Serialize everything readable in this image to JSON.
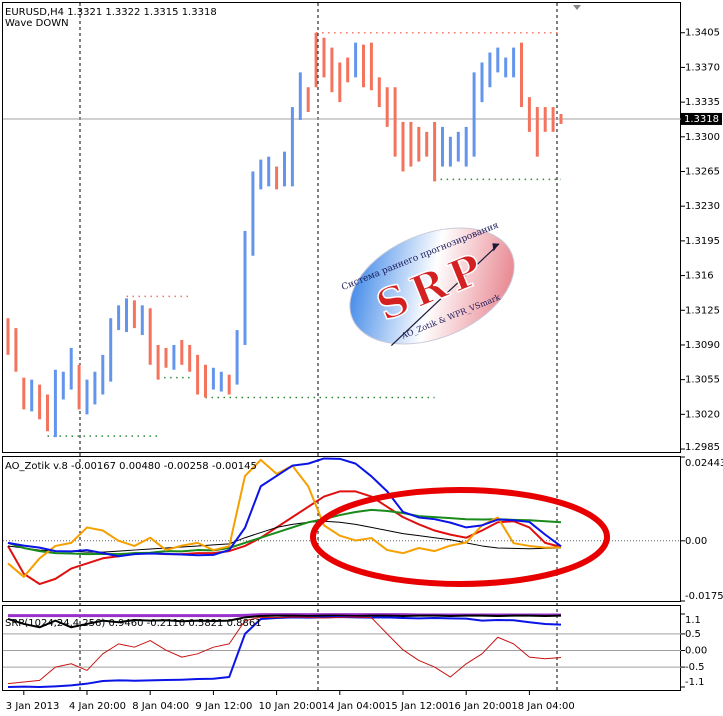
{
  "chart_data": [
    {
      "type": "bar",
      "title": "EURUSD,H4 1.3321 1.3322 1.3315 1.3318",
      "subtitle": "Wave DOWN",
      "categories": [
        null,
        null,
        "3 Jan 2013",
        null,
        null,
        null,
        null,
        null,
        null,
        null,
        "4 Jan 20:00",
        null,
        null,
        null,
        null,
        null,
        null,
        null,
        "8 Jan 04:00",
        null,
        null,
        null,
        null,
        null,
        null,
        null,
        "9 Jan 12:00",
        null,
        null,
        null,
        null,
        null,
        null,
        null,
        "10 Jan 20:00",
        null,
        null,
        null,
        null,
        null,
        null,
        null,
        "14 Jan 04:00",
        null,
        null,
        null,
        null,
        null,
        null,
        null,
        "15 Jan 12:00",
        null,
        null,
        null,
        null,
        null,
        null,
        null,
        "16 Jan 20:00",
        null,
        null,
        null,
        null,
        null,
        null,
        null,
        "18 Jan 04:00",
        null,
        null,
        null,
        null
      ],
      "high": [
        1.3117,
        1.3107,
        1.3057,
        1.3055,
        1.305,
        1.304,
        1.3065,
        1.3063,
        1.3087,
        1.307,
        1.3055,
        1.3063,
        1.308,
        1.3117,
        1.313,
        1.3137,
        1.3135,
        1.313,
        1.3127,
        1.309,
        1.3087,
        1.309,
        1.3095,
        1.309,
        1.308,
        1.307,
        1.3067,
        1.3063,
        1.306,
        1.3105,
        1.3205,
        1.3265,
        1.3277,
        1.328,
        1.327,
        1.3285,
        1.333,
        1.3365,
        1.335,
        1.3405,
        1.34,
        1.339,
        1.3375,
        1.338,
        1.3395,
        1.3393,
        1.3395,
        1.336,
        1.335,
        1.335,
        1.3315,
        1.3315,
        1.331,
        1.3305,
        1.3315,
        1.331,
        1.33,
        1.3305,
        1.331,
        1.3365,
        1.3375,
        1.3385,
        1.339,
        1.338,
        1.339,
        1.3395,
        1.334,
        1.333,
        1.333,
        1.333,
        1.3323
      ],
      "low": [
        1.308,
        1.3063,
        1.3025,
        1.3023,
        1.3015,
        1.3003,
        1.2997,
        1.3035,
        1.3045,
        1.3025,
        1.302,
        1.303,
        1.304,
        1.3053,
        1.3105,
        1.3103,
        1.3107,
        1.31,
        1.307,
        1.3055,
        1.3067,
        1.3065,
        1.307,
        1.3063,
        1.304,
        1.3037,
        1.3045,
        1.3043,
        1.304,
        1.305,
        1.309,
        1.318,
        1.3247,
        1.325,
        1.3247,
        1.325,
        1.325,
        1.3317,
        1.3325,
        1.335,
        1.336,
        1.3345,
        1.3335,
        1.3355,
        1.336,
        1.335,
        1.3347,
        1.333,
        1.331,
        1.328,
        1.3265,
        1.327,
        1.3275,
        1.328,
        1.3255,
        1.327,
        1.327,
        1.3275,
        1.327,
        1.328,
        1.3335,
        1.335,
        1.3365,
        1.336,
        1.336,
        1.333,
        1.3305,
        1.328,
        1.3305,
        1.3305,
        1.3313
      ],
      "colors": [
        "#f4735d",
        "#f4735d",
        "#f4735d",
        "#6495ed",
        "#f4735d",
        "#f4735d",
        "#6495ed",
        "#6495ed",
        "#6495ed",
        "#f4735d",
        "#6495ed",
        "#6495ed",
        "#6495ed",
        "#6495ed",
        "#6495ed",
        "#6495ed",
        "#f4735d",
        "#6495ed",
        "#f4735d",
        "#f4735d",
        "#f4735d",
        "#6495ed",
        "#f4735d",
        "#f4735d",
        "#f4735d",
        "#f4735d",
        "#6495ed",
        "#6495ed",
        "#f4735d",
        "#6495ed",
        "#6495ed",
        "#6495ed",
        "#6495ed",
        "#6495ed",
        "#f4735d",
        "#6495ed",
        "#6495ed",
        "#6495ed",
        "#f4735d",
        "#f4735d",
        "#f4735d",
        "#f4735d",
        "#f4735d",
        "#f4735d",
        "#6495ed",
        "#f4735d",
        "#f4735d",
        "#f4735d",
        "#f4735d",
        "#f4735d",
        "#f4735d",
        "#f4735d",
        "#f4735d",
        "#f4735d",
        "#f4735d",
        "#6495ed",
        "#6495ed",
        "#6495ed",
        "#6495ed",
        "#6495ed",
        "#6495ed",
        "#6495ed",
        "#6495ed",
        "#6495ed",
        "#6495ed",
        "#f4735d",
        "#f4735d",
        "#f4735d",
        "#f4735d",
        "#f4735d",
        "#f4735d"
      ],
      "levels": [
        {
          "value": 1.3405,
          "color": "#f4735d",
          "start": 39,
          "end": 70
        },
        {
          "value": 1.3257,
          "color": "#2e8b3a",
          "start": 54,
          "end": 70
        },
        {
          "value": 1.3139,
          "color": "#f4735d",
          "start": 15,
          "end": 23
        },
        {
          "value": 1.3057,
          "color": "#2e8b3a",
          "start": 19,
          "end": 23
        },
        {
          "value": 1.3037,
          "color": "#2e8b3a",
          "start": 25,
          "end": 54
        },
        {
          "value": 1.2998,
          "color": "#2e8b3a",
          "start": 5,
          "end": 19
        }
      ],
      "current_price": 1.3318,
      "logo": {
        "caption": "Система раннего прогнозирования",
        "title": "SRP",
        "credit": "AO_Zotik & WPR_VSmark"
      },
      "ylim": [
        1.2982,
        1.3435
      ],
      "yticks": [
        1.3405,
        {
          "value": 1.337,
          "label": "1.3370"
        },
        1.3335,
        {
          "value": 1.33,
          "label": "1.3300"
        },
        1.3265,
        {
          "value": 1.323,
          "label": "1.3230"
        },
        1.3195,
        1.316,
        1.3125,
        {
          "value": 1.309,
          "label": "1.3090"
        },
        1.3055,
        {
          "value": 1.302,
          "label": "1.3020"
        },
        1.2985
      ],
      "grid": false
    },
    {
      "type": "line",
      "title": "AO_Zotik v.8 -0.00167 0.00480 -0.00258 -0.00145",
      "x": [
        0,
        2,
        4,
        6,
        8,
        10,
        12,
        14,
        16,
        18,
        20,
        22,
        24,
        26,
        28,
        30,
        32,
        34,
        36,
        38,
        40,
        42,
        44,
        46,
        48,
        50,
        52,
        54,
        56,
        58,
        60,
        62,
        64,
        66,
        68,
        70
      ],
      "series": [
        {
          "color": "#e01010",
          "width": 2,
          "values": [
            -0.0015,
            -0.0096,
            -0.0126,
            -0.0111,
            -0.0081,
            -0.0066,
            -0.0051,
            -0.0045,
            -0.0036,
            -0.0036,
            -0.0039,
            -0.0039,
            -0.0036,
            -0.0036,
            -0.003,
            -0.0015,
            0.0009,
            0.0039,
            0.0069,
            0.0099,
            0.0129,
            0.0144,
            0.0144,
            0.0129,
            0.0099,
            0.0069,
            0.0048,
            0.003,
            0.0018,
            0.0009,
            0.003,
            0.0054,
            0.0057,
            0.0039,
            -0.0006,
            -0.0018
          ]
        },
        {
          "color": "#000000",
          "width": 1,
          "values": [
            -0.0015,
            -0.0021,
            -0.0027,
            -0.003,
            -0.003,
            -0.0033,
            -0.0033,
            -0.003,
            -0.0027,
            -0.0024,
            -0.0021,
            -0.0018,
            -0.0015,
            -0.0012,
            -0.0009,
            0.0009,
            0.0024,
            0.0039,
            0.0048,
            0.0054,
            0.0057,
            0.0054,
            0.0048,
            0.0039,
            0.003,
            0.0021,
            0.0015,
            0.0009,
            0.0003,
            -0.0006,
            -0.0015,
            -0.0021,
            -0.0022,
            -0.0023,
            -0.0022,
            -0.0021
          ]
        },
        {
          "color": "#1a8a1a",
          "width": 2,
          "values": [
            -0.0006,
            -0.0021,
            -0.003,
            -0.0036,
            -0.0037,
            -0.0039,
            -0.0038,
            -0.0039,
            -0.0036,
            -0.0035,
            -0.003,
            -0.0031,
            -0.0027,
            -0.0028,
            -0.0021,
            -0.0006,
            0.0009,
            0.0024,
            0.0039,
            0.0054,
            0.0063,
            0.0075,
            0.0084,
            0.009,
            0.0087,
            0.0081,
            0.0072,
            0.0069,
            0.0066,
            0.0063,
            0.0062,
            0.0063,
            0.0061,
            0.006,
            0.0057,
            0.0054
          ]
        },
        {
          "color": "#f5a000",
          "width": 2,
          "values": [
            -0.0066,
            -0.0105,
            -0.0051,
            -0.0015,
            -0.0006,
            0.0039,
            0.003,
            0,
            -0.0015,
            0.0009,
            -0.0027,
            -0.0014,
            -0.0006,
            -0.0027,
            -0.0016,
            0.0189,
            0.0236,
            0.0195,
            0.0219,
            0.0159,
            0.0045,
            0.0015,
            0.0001,
            0.0008,
            -0.0027,
            -0.0036,
            -0.0021,
            -0.003,
            -0.0014,
            -0.0005,
            0.0045,
            0.0068,
            -0.0007,
            -0.0015,
            -0.002,
            -0.0019
          ]
        },
        {
          "color": "#0a14e6",
          "width": 2,
          "values": [
            -0.0006,
            -0.0014,
            -0.002,
            -0.003,
            -0.0031,
            -0.0027,
            -0.0036,
            -0.0045,
            -0.0039,
            -0.0037,
            -0.0038,
            -0.004,
            -0.0042,
            -0.0041,
            -0.0027,
            0.0038,
            0.0159,
            0.0189,
            0.0219,
            0.0225,
            0.024,
            0.0239,
            0.0225,
            0.0188,
            0.0144,
            0.0084,
            0.0068,
            0.0063,
            0.0053,
            0.0039,
            0.0045,
            0.0062,
            0.006,
            0.0055,
            0.0018,
            -0.0016
          ]
        }
      ],
      "ylim": [
        -0.01755,
        0.02443
      ],
      "yticks": [
        0.02443,
        {
          "value": 0,
          "label": "0.00"
        },
        -0.01755
      ],
      "grid": true
    },
    {
      "type": "line",
      "title": "SRP(1024,24,4,256) 0.9460 -0.2110 0.5821 0.8861",
      "x": [
        0,
        2,
        4,
        6,
        8,
        10,
        12,
        14,
        16,
        18,
        20,
        22,
        24,
        26,
        28,
        30,
        32,
        34,
        36,
        38,
        40,
        42,
        44,
        46,
        48,
        50,
        52,
        54,
        56,
        58,
        60,
        62,
        64,
        66,
        68,
        70
      ],
      "series": [
        {
          "color": "#9932cc",
          "width": 3,
          "values": [
            1.05,
            1.05,
            1.05,
            1.05,
            1.05,
            1.05,
            1.05,
            1.05,
            1.05,
            1.05,
            1.05,
            1.05,
            1.05,
            1.05,
            1.05,
            1.06,
            1.08,
            1.08,
            1.08,
            1.08,
            1.08,
            1.08,
            1.08,
            1.08,
            1.08,
            1.08,
            1.07,
            1.07,
            1.07,
            1.07,
            1.07,
            1.07,
            1.07,
            1.07,
            1.07,
            1.07
          ]
        },
        {
          "color": "#000000",
          "width": 2,
          "values": [
            0.95,
            0.8,
            0.7,
            0.9,
            0.7,
            0.8,
            0.9,
            0.85,
            0.92,
            0.9,
            0.91,
            0.88,
            0.9,
            0.89,
            0.9,
            1.0,
            1.04,
            1.05,
            1.05,
            1.04,
            1.05,
            1.05,
            1.04,
            1.05,
            1.05,
            1.04,
            1.05,
            1.05,
            1.04,
            1.05,
            1.05,
            1.04,
            1.05,
            1.05,
            1.04,
            1.05
          ]
        },
        {
          "color": "#0a14e6",
          "width": 2,
          "values": [
            -1.1,
            -1.09,
            -1.1,
            -1.08,
            -1.05,
            -1.0,
            -0.92,
            -0.9,
            -0.91,
            -0.9,
            -0.89,
            -0.88,
            -0.86,
            -0.85,
            -0.8,
            0.5,
            0.95,
            0.98,
            1.0,
            0.99,
            1.0,
            1.01,
            1.0,
            0.99,
            1.0,
            0.98,
            0.97,
            0.98,
            0.97,
            0.96,
            0.9,
            0.92,
            0.91,
            0.85,
            0.8,
            0.78
          ]
        },
        {
          "color": "#c81414",
          "width": 1,
          "values": [
            -1.0,
            -0.95,
            -0.9,
            -0.5,
            -0.4,
            -0.6,
            -0.1,
            0.2,
            0.1,
            0.3,
            0.01,
            -0.2,
            -0.1,
            0.1,
            0.2,
            0.9,
            1.0,
            0.99,
            1.01,
            1.0,
            0.98,
            1.0,
            1.01,
            0.99,
            0.5,
            0.02,
            -0.3,
            -0.5,
            -0.8,
            -0.4,
            -0.1,
            0.4,
            0.2,
            -0.2,
            -0.25,
            -0.21
          ]
        }
      ],
      "ylim": [
        -1.1,
        1.1
      ],
      "yticks": [
        1.1,
        0.5,
        {
          "value": 0,
          "label": "0.00"
        },
        -0.5,
        -1.1
      ],
      "grid": true
    }
  ]
}
